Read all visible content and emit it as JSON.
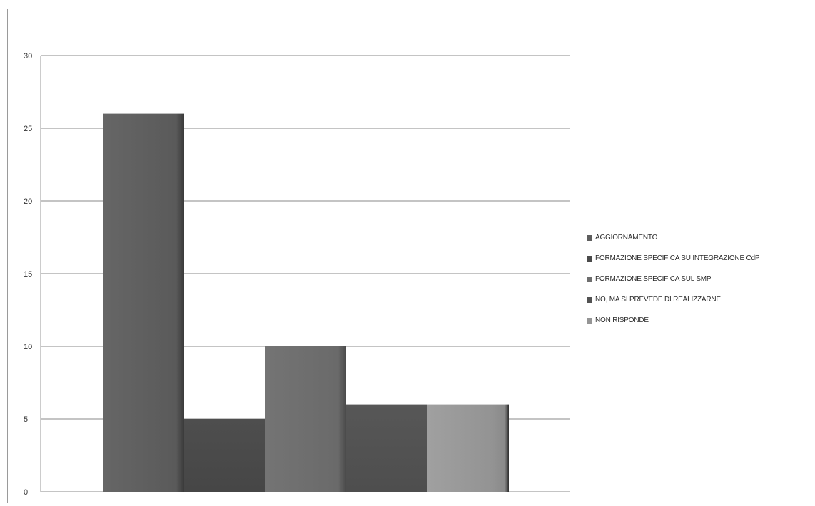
{
  "chart_data": {
    "type": "bar",
    "categories": [
      "AGGIORNAMENTO",
      "FORMAZIONE SPECIFICA SU INTEGRAZIONE CdP",
      "FORMAZIONE SPECIFICA SUL SMP",
      "NO, MA SI PREVEDE DI REALIZZARNE",
      "NON RISPONDE"
    ],
    "series": [
      {
        "name": "AGGIORNAMENTO",
        "value": 26,
        "color": "#5e5e5e"
      },
      {
        "name": "FORMAZIONE SPECIFICA SU INTEGRAZIONE CdP",
        "value": 5,
        "color": "#4a4a4a"
      },
      {
        "name": "FORMAZIONE SPECIFICA SUL SMP",
        "value": 10,
        "color": "#6e6e6e"
      },
      {
        "name": "NO, MA SI PREVEDE DI REALIZZARNE",
        "value": 6,
        "color": "#525252"
      },
      {
        "name": "NON RISPONDE",
        "value": 6,
        "color": "#959595"
      }
    ],
    "yticks": [
      "0",
      "5",
      "10",
      "15",
      "20",
      "25",
      "30"
    ],
    "ylim": [
      0,
      30
    ],
    "grid": true,
    "legend_position": "right",
    "title": "",
    "xlabel": "",
    "ylabel": ""
  }
}
